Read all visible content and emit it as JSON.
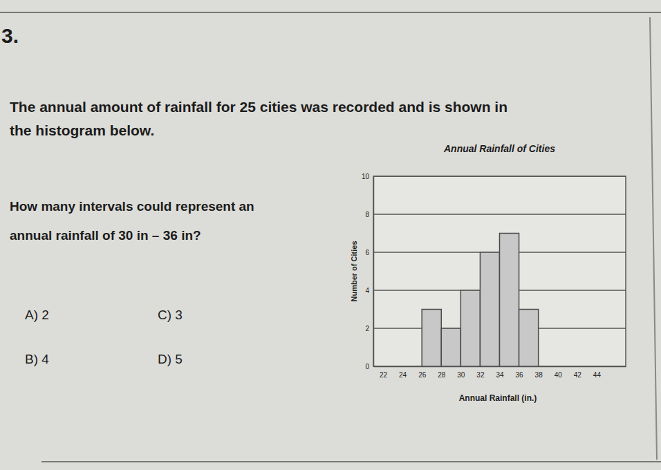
{
  "number": "3.",
  "intro": [
    "The annual amount of rainfall for 25 cities was recorded and is shown in",
    "the histogram below."
  ],
  "question": [
    "How many intervals could represent an",
    "annual rainfall of 30 in – 36 in?"
  ],
  "choices": [
    "A) 2",
    "C) 3",
    "B) 4",
    "D) 5"
  ],
  "chart_data": {
    "type": "histogram",
    "title": "Annual Rainfall of Cities",
    "x_label": "Annual Rainfall (in.)",
    "y_label": "Number of Cities",
    "bins": [
      26,
      28,
      30,
      32,
      34,
      36,
      38
    ],
    "values": [
      3,
      2,
      4,
      6,
      7,
      3
    ],
    "color": "#c8c8c8",
    "xlim": [
      21,
      47
    ],
    "xticks": [
      22,
      24,
      26,
      28,
      30,
      32,
      34,
      36,
      38,
      40,
      42,
      44
    ],
    "ylim": [
      0,
      10
    ],
    "yticks": [
      0,
      2,
      4,
      6,
      8,
      10
    ],
    "grid": true
  }
}
